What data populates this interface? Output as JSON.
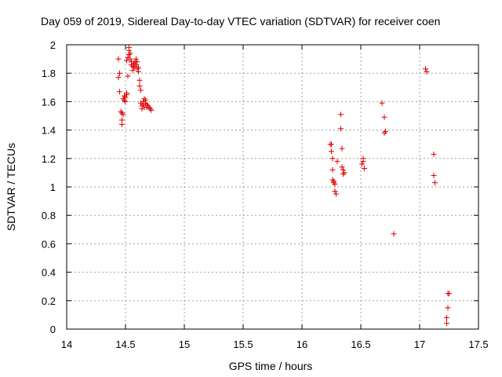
{
  "chart_data": {
    "type": "scatter",
    "title": "Day 059 of 2019, Sidereal Day-to-day VTEC variation (SDTVAR) for receiver coen",
    "xlabel": "GPS time / hours",
    "ylabel": "SDTVAR / TECUs",
    "xlim": [
      14,
      17.5
    ],
    "ylim": [
      0,
      2
    ],
    "xticks": [
      "14",
      "14.5",
      "15",
      "15.5",
      "16",
      "16.5",
      "17",
      "17.5"
    ],
    "yticks": [
      "0",
      "0.2",
      "0.4",
      "0.6",
      "0.8",
      "1",
      "1.2",
      "1.4",
      "1.6",
      "1.8",
      "2"
    ],
    "grid": true,
    "marker": "+",
    "color": "#e00000",
    "series": [
      {
        "name": "SDTVAR",
        "points": [
          [
            14.44,
            1.9
          ],
          [
            14.44,
            1.77
          ],
          [
            14.45,
            1.8
          ],
          [
            14.45,
            1.67
          ],
          [
            14.46,
            1.53
          ],
          [
            14.47,
            1.52
          ],
          [
            14.47,
            1.47
          ],
          [
            14.47,
            1.44
          ],
          [
            14.48,
            1.51
          ],
          [
            14.48,
            1.62
          ],
          [
            14.49,
            1.61
          ],
          [
            14.49,
            1.64
          ],
          [
            14.5,
            1.63
          ],
          [
            14.5,
            1.6
          ],
          [
            14.51,
            1.66
          ],
          [
            14.51,
            1.65
          ],
          [
            14.51,
            1.89
          ],
          [
            14.52,
            1.91
          ],
          [
            14.52,
            1.78
          ],
          [
            14.53,
            1.93
          ],
          [
            14.53,
            1.96
          ],
          [
            14.53,
            1.98
          ],
          [
            14.54,
            1.94
          ],
          [
            14.54,
            1.9
          ],
          [
            14.55,
            1.88
          ],
          [
            14.55,
            1.86
          ],
          [
            14.56,
            1.82
          ],
          [
            14.56,
            1.85
          ],
          [
            14.57,
            1.87
          ],
          [
            14.57,
            1.84
          ],
          [
            14.58,
            1.88
          ],
          [
            14.58,
            1.85
          ],
          [
            14.59,
            1.9
          ],
          [
            14.59,
            1.86
          ],
          [
            14.6,
            1.83
          ],
          [
            14.6,
            1.88
          ],
          [
            14.61,
            1.81
          ],
          [
            14.61,
            1.84
          ],
          [
            14.62,
            1.75
          ],
          [
            14.62,
            1.71
          ],
          [
            14.63,
            1.68
          ],
          [
            14.63,
            1.59
          ],
          [
            14.64,
            1.57
          ],
          [
            14.64,
            1.55
          ],
          [
            14.65,
            1.58
          ],
          [
            14.65,
            1.6
          ],
          [
            14.66,
            1.62
          ],
          [
            14.66,
            1.56
          ],
          [
            14.67,
            1.59
          ],
          [
            14.67,
            1.61
          ],
          [
            14.68,
            1.58
          ],
          [
            14.68,
            1.56
          ],
          [
            14.69,
            1.57
          ],
          [
            14.7,
            1.56
          ],
          [
            14.71,
            1.55
          ],
          [
            14.72,
            1.54
          ],
          [
            16.24,
            1.3
          ],
          [
            16.25,
            1.3
          ],
          [
            16.25,
            1.25
          ],
          [
            16.26,
            1.2
          ],
          [
            16.26,
            1.12
          ],
          [
            16.26,
            1.05
          ],
          [
            16.27,
            1.03
          ],
          [
            16.27,
            1.04
          ],
          [
            16.28,
            1.02
          ],
          [
            16.28,
            0.97
          ],
          [
            16.29,
            0.95
          ],
          [
            16.3,
            1.18
          ],
          [
            16.33,
            1.51
          ],
          [
            16.33,
            1.41
          ],
          [
            16.34,
            1.27
          ],
          [
            16.34,
            1.14
          ],
          [
            16.35,
            1.12
          ],
          [
            16.35,
            1.09
          ],
          [
            16.36,
            1.1
          ],
          [
            16.51,
            1.16
          ],
          [
            16.52,
            1.18
          ],
          [
            16.52,
            1.2
          ],
          [
            16.53,
            1.13
          ],
          [
            16.68,
            1.59
          ],
          [
            16.7,
            1.49
          ],
          [
            16.7,
            1.38
          ],
          [
            16.71,
            1.39
          ],
          [
            16.78,
            0.67
          ],
          [
            17.05,
            1.83
          ],
          [
            17.06,
            1.81
          ],
          [
            17.12,
            1.23
          ],
          [
            17.12,
            1.08
          ],
          [
            17.13,
            1.03
          ],
          [
            17.23,
            0.08
          ],
          [
            17.23,
            0.04
          ],
          [
            17.24,
            0.15
          ],
          [
            17.24,
            0.25
          ],
          [
            17.25,
            0.25
          ]
        ]
      }
    ]
  }
}
